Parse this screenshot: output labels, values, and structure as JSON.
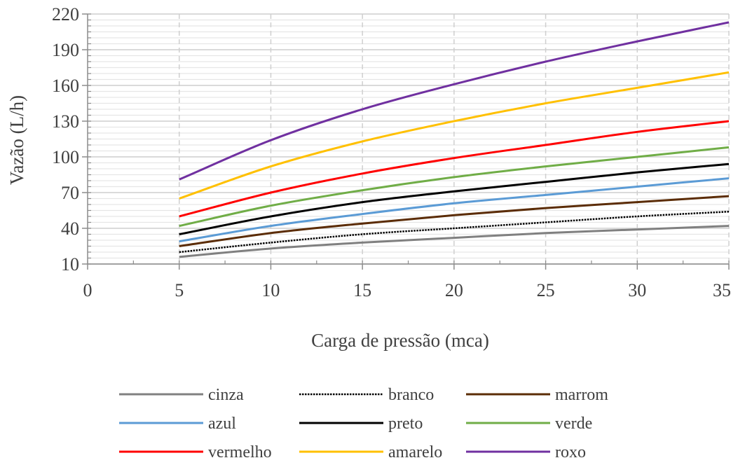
{
  "chart_data": {
    "type": "line",
    "title": "",
    "xlabel": "Carga de pressão (mca)",
    "ylabel": "Vazão (L/h)",
    "xlim": [
      0,
      35
    ],
    "ylim": [
      10,
      220
    ],
    "x_ticks": [
      0,
      5,
      10,
      15,
      20,
      25,
      30,
      35
    ],
    "y_ticks": [
      10,
      40,
      70,
      100,
      130,
      160,
      190,
      220
    ],
    "grid": true,
    "legend_position": "bottom",
    "x": [
      5,
      10,
      15,
      20,
      25,
      30,
      35
    ],
    "series": [
      {
        "name": "cinza",
        "color": "#808080",
        "style": "solid",
        "values": [
          16,
          23,
          28,
          32,
          36,
          39,
          42
        ]
      },
      {
        "name": "branco",
        "color": "#000000",
        "style": "dotted",
        "values": [
          20,
          28,
          35,
          40,
          45,
          50,
          54
        ]
      },
      {
        "name": "marrom",
        "color": "#5b2c06",
        "style": "solid",
        "values": [
          25,
          36,
          44,
          51,
          57,
          62,
          67
        ]
      },
      {
        "name": "azul",
        "color": "#5b9bd5",
        "style": "solid",
        "values": [
          29,
          42,
          52,
          61,
          68,
          75,
          82
        ]
      },
      {
        "name": "preto",
        "color": "#000000",
        "style": "solid",
        "values": [
          35,
          50,
          62,
          71,
          79,
          87,
          94
        ]
      },
      {
        "name": "verde",
        "color": "#70ad47",
        "style": "solid",
        "values": [
          42,
          59,
          72,
          83,
          92,
          100,
          108
        ]
      },
      {
        "name": "vermelho",
        "color": "#ff0000",
        "style": "solid",
        "values": [
          50,
          70,
          86,
          99,
          110,
          121,
          130
        ]
      },
      {
        "name": "amarelo",
        "color": "#ffc000",
        "style": "solid",
        "values": [
          65,
          92,
          113,
          130,
          145,
          158,
          171
        ]
      },
      {
        "name": "roxo",
        "color": "#7030a0",
        "style": "solid",
        "values": [
          81,
          114,
          140,
          161,
          180,
          197,
          213
        ]
      }
    ]
  }
}
